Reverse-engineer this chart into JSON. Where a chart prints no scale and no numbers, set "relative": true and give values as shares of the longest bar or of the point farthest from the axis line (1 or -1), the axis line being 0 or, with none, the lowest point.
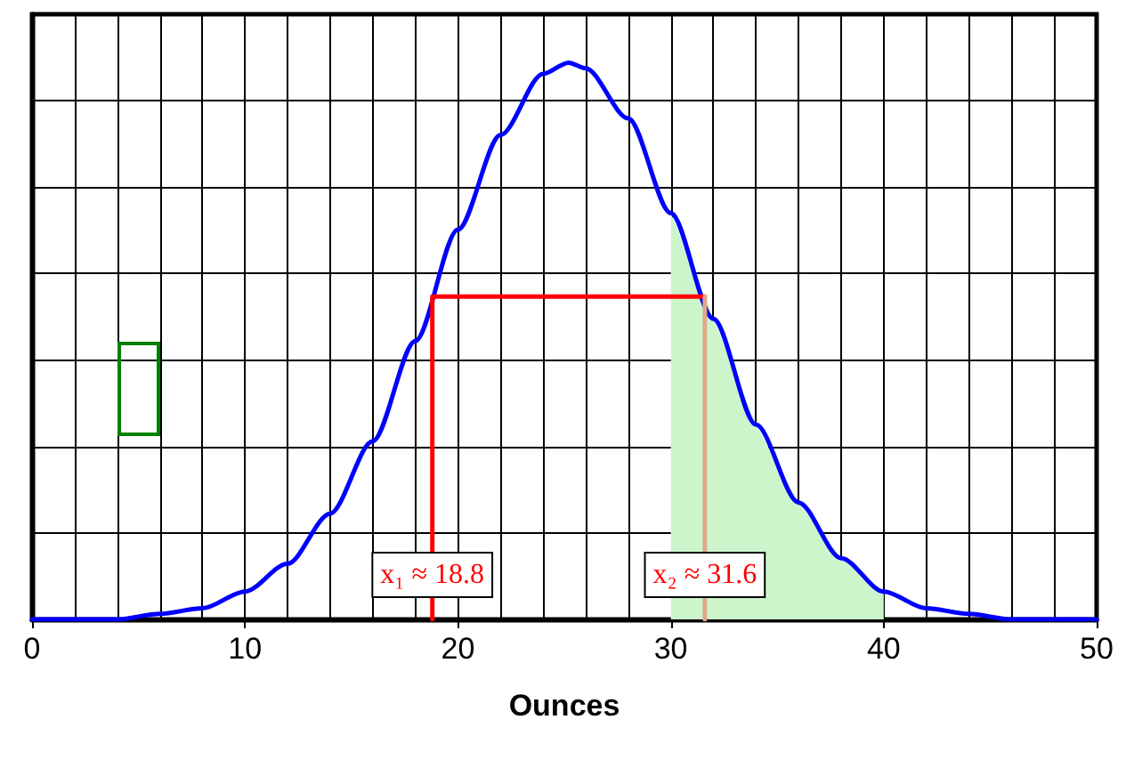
{
  "chart_data": {
    "type": "line",
    "xlabel": "Ounces",
    "xlim": [
      0,
      50
    ],
    "xticks": [
      0,
      10,
      20,
      30,
      40,
      50
    ],
    "relative": true,
    "grid": true,
    "marker": "none",
    "annotations": [
      {
        "text": "x₁ ≈ 18.8",
        "x": 18.8,
        "y": 0.08
      },
      {
        "text": "x₂ ≈ 31.6",
        "x": 31.6,
        "y": 0.08
      }
    ],
    "series": [
      {
        "type": "area",
        "color": "#ccf5cc",
        "x": [
          30,
          32,
          34,
          36,
          38,
          40
        ],
        "values": [
          0.73,
          0.54,
          0.35,
          0.21,
          0.11,
          0.05
        ]
      },
      {
        "color": "#0000ff",
        "x": [
          0,
          2,
          4,
          6,
          8,
          10,
          12,
          14,
          16,
          18,
          20,
          22,
          24,
          25.2,
          26,
          28,
          30,
          32,
          34,
          36,
          38,
          40,
          42,
          44,
          46,
          48,
          50
        ],
        "values": [
          0,
          0,
          0,
          0.01,
          0.02,
          0.05,
          0.1,
          0.19,
          0.32,
          0.5,
          0.7,
          0.87,
          0.98,
          1,
          0.99,
          0.9,
          0.73,
          0.54,
          0.35,
          0.21,
          0.11,
          0.05,
          0.02,
          0.01,
          0,
          0,
          0
        ]
      },
      {
        "color": "#ff0000",
        "x": [
          18.8,
          18.8,
          31.6
        ],
        "values": [
          0,
          0.58,
          0.58
        ]
      },
      {
        "color": "#e0a888",
        "x": [
          31.6,
          31.6
        ],
        "values": [
          0.58,
          0
        ]
      }
    ]
  }
}
